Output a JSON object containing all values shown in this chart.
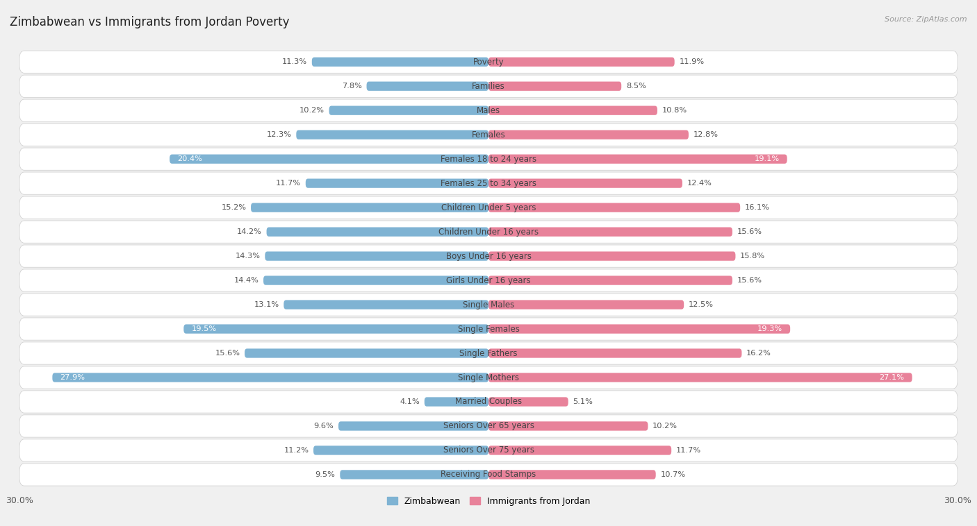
{
  "title": "Zimbabwean vs Immigrants from Jordan Poverty",
  "source": "Source: ZipAtlas.com",
  "categories": [
    "Poverty",
    "Families",
    "Males",
    "Females",
    "Females 18 to 24 years",
    "Females 25 to 34 years",
    "Children Under 5 years",
    "Children Under 16 years",
    "Boys Under 16 years",
    "Girls Under 16 years",
    "Single Males",
    "Single Females",
    "Single Fathers",
    "Single Mothers",
    "Married Couples",
    "Seniors Over 65 years",
    "Seniors Over 75 years",
    "Receiving Food Stamps"
  ],
  "zimbabwean": [
    11.3,
    7.8,
    10.2,
    12.3,
    20.4,
    11.7,
    15.2,
    14.2,
    14.3,
    14.4,
    13.1,
    19.5,
    15.6,
    27.9,
    4.1,
    9.6,
    11.2,
    9.5
  ],
  "jordan": [
    11.9,
    8.5,
    10.8,
    12.8,
    19.1,
    12.4,
    16.1,
    15.6,
    15.8,
    15.6,
    12.5,
    19.3,
    16.2,
    27.1,
    5.1,
    10.2,
    11.7,
    10.7
  ],
  "zimbabwean_color": "#7fb3d3",
  "jordan_color": "#e8829a",
  "zimbabwean_label": "Zimbabwean",
  "jordan_label": "Immigrants from Jordan",
  "axis_max": 30.0,
  "page_bg": "#f0f0f0",
  "row_bg": "#e8e8e8",
  "bar_row_bg": "#ffffff",
  "title_fontsize": 12,
  "label_fontsize": 8.5,
  "value_fontsize": 8.2
}
